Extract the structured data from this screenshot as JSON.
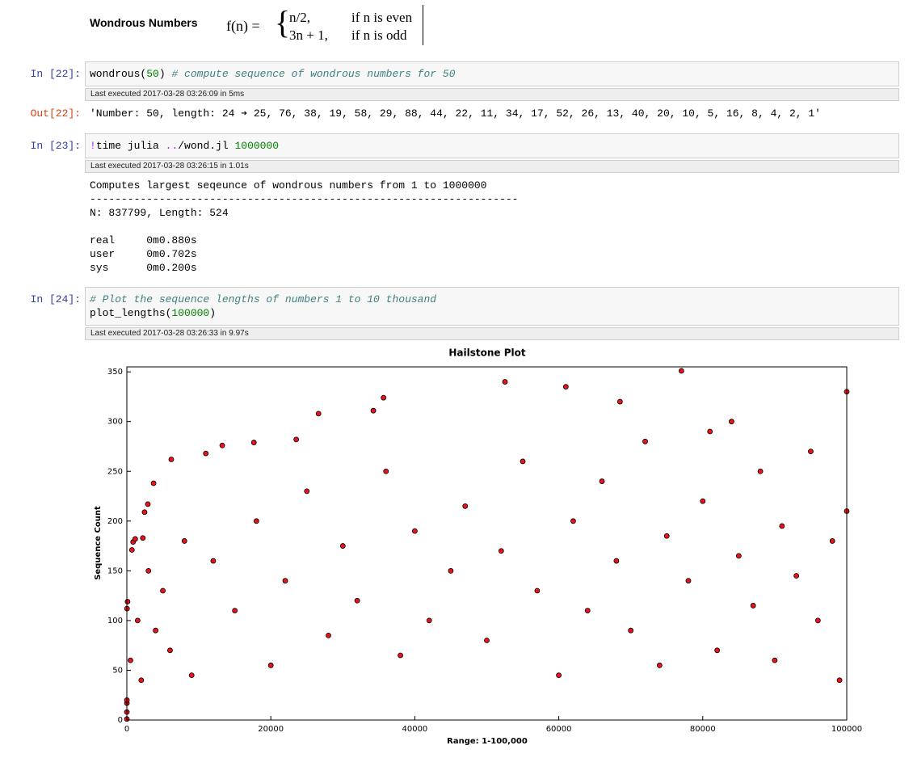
{
  "header": {
    "title": "Wondrous Numbers",
    "formula": {
      "lhs": "f(n) =",
      "cases": [
        {
          "expr": "n/2,",
          "cond": "if n is even"
        },
        {
          "expr": "3n + 1,",
          "cond": "if n is odd"
        }
      ]
    }
  },
  "cells": [
    {
      "prompt": "In [22]:",
      "input": [
        [
          {
            "text": "wondrous(",
            "color": "#000000"
          },
          {
            "text": "50",
            "color": "#008000"
          },
          {
            "text": ") ",
            "color": "#000000"
          },
          {
            "text": "# compute sequence of wondrous numbers for 50",
            "color": "#408080",
            "italic": true
          }
        ]
      ],
      "executed": "Last executed 2017-03-28 03:26:09 in 5ms",
      "out_prompt": "Out[22]:",
      "output": [
        [
          "'Number: 50, length: 24 ➔ 25, 76, 38, 19, 58, 29, 88, 44, 22, 11, 34, 17, 52, 26, 13, 40, 20, 10, 5, 16, 8, 4, 2, 1'"
        ]
      ]
    },
    {
      "prompt": "In [23]:",
      "input": [
        [
          {
            "text": "!",
            "color": "#aa22ff"
          },
          {
            "text": "time julia ",
            "color": "#000000"
          },
          {
            "text": "..",
            "color": "#aa22ff"
          },
          {
            "text": "/wond.jl ",
            "color": "#000000"
          },
          {
            "text": "1000000",
            "color": "#008000"
          }
        ]
      ],
      "executed": "Last executed 2017-03-28 03:26:15 in 1.01s",
      "output": [
        [
          "Computes largest seqeunce of wondrous numbers from 1 to 1000000",
          "--------------------------------------------------------------------",
          "N: 837799, Length: 524"
        ],
        [
          "real     0m0.880s",
          "user     0m0.702s",
          "sys      0m0.200s"
        ]
      ]
    },
    {
      "prompt": "In [24]:",
      "input": [
        [
          {
            "text": "# Plot the sequence lengths of numbers 1 to 10 thousand",
            "color": "#408080",
            "italic": true
          }
        ],
        [
          {
            "text": "plot_lengths(",
            "color": "#000000"
          },
          {
            "text": "100000",
            "color": "#008000"
          },
          {
            "text": ")",
            "color": "#000000"
          }
        ]
      ],
      "executed": "Last executed 2017-03-28 03:26:33 in 9.97s"
    }
  ],
  "chart_data": {
    "type": "scatter",
    "title": "Hailstone Plot",
    "x_label": "Range: 1-100,000",
    "y_label": "Sequence Count",
    "color": "#e8141a",
    "edge_color": "#000000",
    "xlim": [
      0,
      100000
    ],
    "ylim": [
      0,
      355
    ],
    "xticks": [
      0,
      20000,
      40000,
      60000,
      80000,
      100000
    ],
    "yticks": [
      0,
      50,
      100,
      150,
      200,
      250,
      300,
      350
    ],
    "x": [
      1,
      3,
      7,
      9,
      27,
      97,
      871,
      703,
      1161,
      2223,
      2463,
      2919,
      3711,
      6171,
      10971,
      13255,
      17647,
      23529,
      26623,
      34239,
      35655,
      52527,
      77031,
      60975,
      500,
      1500,
      2000,
      3000,
      4000,
      5000,
      6000,
      8000,
      9000,
      12000,
      15000,
      18000,
      20000,
      22000,
      25000,
      28000,
      30000,
      32000,
      36000,
      38000,
      40000,
      42000,
      45000,
      47000,
      50000,
      52000,
      55000,
      57000,
      60000,
      62000,
      64000,
      66000,
      68000,
      70000,
      72000,
      74000,
      75000,
      78000,
      80000,
      82000,
      84000,
      85000,
      87000,
      88000,
      90000,
      91000,
      93000,
      95000,
      96000,
      98000,
      99000,
      100000,
      100000,
      81000,
      68500
    ],
    "values": [
      1,
      8,
      17,
      20,
      112,
      119,
      179,
      171,
      182,
      183,
      209,
      217,
      238,
      262,
      268,
      276,
      279,
      282,
      308,
      311,
      324,
      340,
      351,
      335,
      60,
      100,
      40,
      150,
      90,
      130,
      70,
      180,
      45,
      160,
      110,
      200,
      55,
      140,
      230,
      85,
      175,
      120,
      250,
      65,
      190,
      100,
      150,
      215,
      80,
      170,
      260,
      130,
      45,
      200,
      110,
      240,
      160,
      90,
      280,
      55,
      185,
      140,
      220,
      70,
      300,
      165,
      115,
      250,
      60,
      195,
      145,
      270,
      100,
      180,
      40,
      210,
      330,
      290,
      320
    ]
  }
}
